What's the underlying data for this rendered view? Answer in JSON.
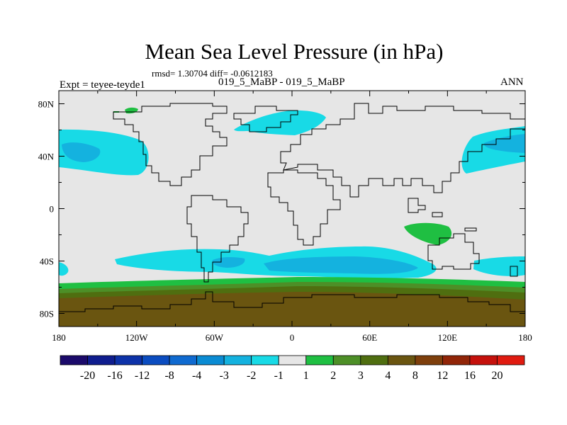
{
  "chart_data": {
    "type": "heatmap",
    "title": "Mean Sea Level Pressure (in hPa)",
    "stats_line": "rmsd= 1.30704 diff= -0.0612183",
    "left_string": "Expt = teyee-teyde1",
    "center_string": "019_5_MaBP - 019_5_MaBP",
    "right_string": "ANN",
    "x_axis": {
      "range": [
        -180,
        180
      ],
      "tick_labels": [
        "180",
        "120W",
        "60W",
        "0",
        "60E",
        "120E",
        "180"
      ]
    },
    "y_axis": {
      "range": [
        -90,
        90
      ],
      "tick_labels": [
        "80N",
        "40N",
        "0",
        "40S",
        "80S"
      ]
    },
    "colorbar": {
      "labels": [
        "-20",
        "-16",
        "-12",
        "-8",
        "-4",
        "-3",
        "-2",
        "-1",
        "1",
        "2",
        "3",
        "4",
        "8",
        "12",
        "16",
        "20"
      ],
      "colors": [
        "#1b0a6a",
        "#0f1d8e",
        "#0d32a8",
        "#0b4cc0",
        "#0f6ad0",
        "#0a8bd3",
        "#14b2df",
        "#18dae6",
        "#e6e6e6",
        "#1fbf42",
        "#4d8f27",
        "#4f6e10",
        "#6a5510",
        "#7e3f0c",
        "#912508",
        "#c5110c",
        "#e01b10"
      ]
    },
    "features": [
      {
        "name": "North Pacific low anomaly",
        "value_range": "-3 to -1"
      },
      {
        "name": "Southern Ocean low anomaly",
        "value_range": "-3 to -1"
      },
      {
        "name": "Antarctic high anomaly",
        "value_range": "2 to 8"
      },
      {
        "name": "South Indian Ocean high anomaly",
        "value_range": "1 to 2"
      }
    ]
  }
}
